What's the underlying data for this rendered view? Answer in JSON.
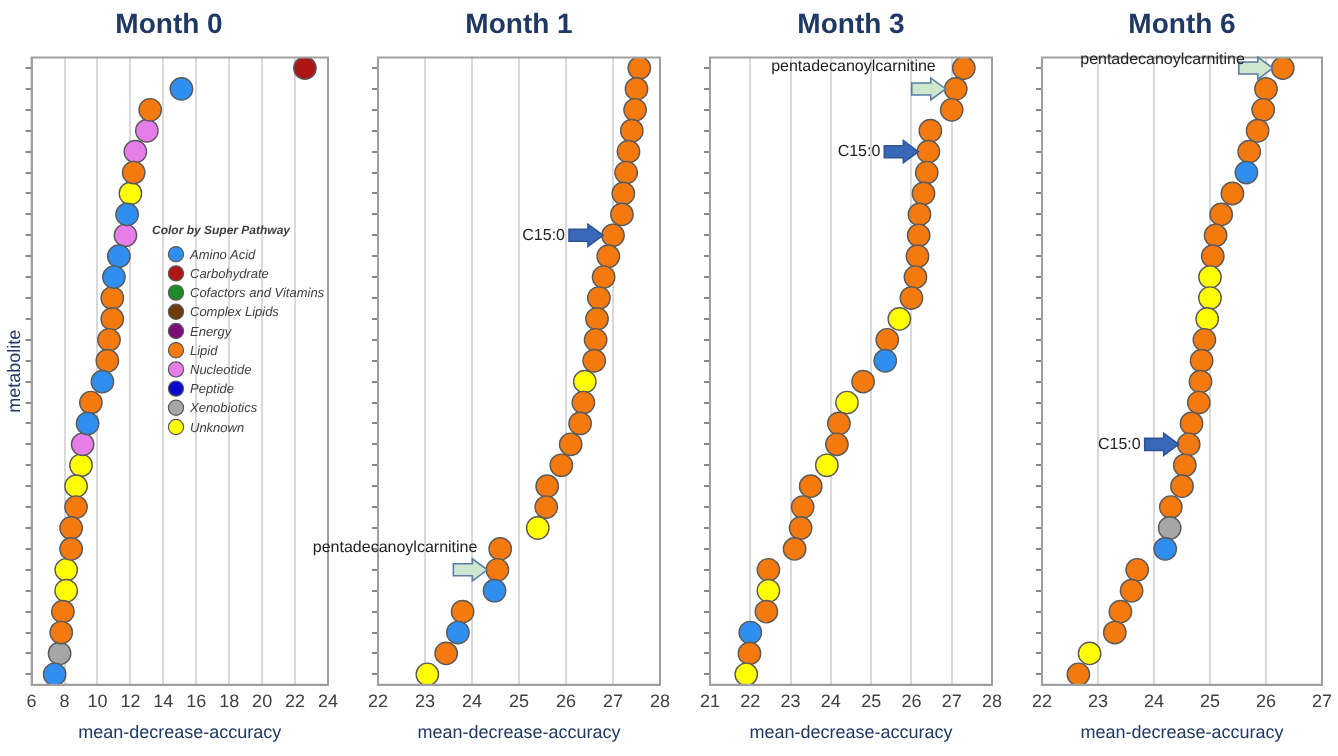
{
  "chart_data": [
    {
      "type": "scatter",
      "orientation": "horizontal",
      "title": "Month 0",
      "xlabel": "mean-decrease-accuracy",
      "ylabel": "metabolite",
      "legend_title": "Color by Super Pathway",
      "legend": "right",
      "grid": "x",
      "marker": "circle",
      "categories": [
        null,
        null,
        null,
        null,
        null,
        null,
        null,
        null,
        null,
        null,
        null,
        null,
        null,
        null,
        null,
        null,
        null,
        null,
        null,
        null,
        null,
        null,
        null,
        null,
        null,
        null,
        null,
        null,
        null,
        null
      ],
      "xlim": [
        6,
        24
      ],
      "xticks": [
        6,
        8,
        10,
        12,
        14,
        16,
        18,
        20,
        22,
        24
      ],
      "series": [
        {
          "name": "Amino Acid",
          "color": "#2e8ff0",
          "values": [
            null,
            15.1,
            null,
            null,
            null,
            null,
            null,
            11.8,
            null,
            11.3,
            11.0,
            null,
            null,
            null,
            null,
            10.3,
            null,
            9.4,
            null,
            null,
            null,
            null,
            null,
            null,
            null,
            null,
            null,
            null,
            null,
            7.4
          ]
        },
        {
          "name": "Carbohydrate",
          "color": "#b01515",
          "values": [
            22.6,
            null,
            null,
            null,
            null,
            null,
            null,
            null,
            null,
            null,
            null,
            null,
            null,
            null,
            null,
            null,
            null,
            null,
            null,
            null,
            null,
            null,
            null,
            null,
            null,
            null,
            null,
            null,
            null,
            null
          ]
        },
        {
          "name": "Cofactors and Vitamins",
          "color": "#1f8a2a",
          "values": [
            null,
            null,
            null,
            null,
            null,
            null,
            null,
            null,
            null,
            null,
            null,
            null,
            null,
            null,
            null,
            null,
            null,
            null,
            null,
            null,
            null,
            null,
            null,
            null,
            null,
            null,
            null,
            null,
            null,
            null
          ]
        },
        {
          "name": "Complex Lipids",
          "color": "#6e3a0c",
          "values": [
            null,
            null,
            null,
            null,
            null,
            null,
            null,
            null,
            null,
            null,
            null,
            null,
            null,
            null,
            null,
            null,
            null,
            null,
            null,
            null,
            null,
            null,
            null,
            null,
            null,
            null,
            null,
            null,
            null,
            null
          ]
        },
        {
          "name": "Energy",
          "color": "#7a0f7a",
          "values": [
            null,
            null,
            null,
            null,
            null,
            null,
            null,
            null,
            null,
            null,
            null,
            null,
            null,
            null,
            null,
            null,
            null,
            null,
            null,
            null,
            null,
            null,
            null,
            null,
            null,
            null,
            null,
            null,
            null,
            null
          ]
        },
        {
          "name": "Lipid",
          "color": "#f47a10",
          "values": [
            null,
            null,
            13.2,
            null,
            null,
            12.2,
            null,
            null,
            null,
            null,
            null,
            10.9,
            10.9,
            10.7,
            10.6,
            null,
            9.6,
            null,
            null,
            null,
            null,
            8.7,
            8.4,
            8.4,
            null,
            null,
            7.9,
            7.8,
            null,
            null
          ]
        },
        {
          "name": "Nucleotide",
          "color": "#e77de8",
          "values": [
            null,
            null,
            null,
            13.0,
            12.3,
            null,
            null,
            null,
            11.7,
            null,
            null,
            null,
            null,
            null,
            null,
            null,
            null,
            null,
            9.1,
            null,
            null,
            null,
            null,
            null,
            null,
            null,
            null,
            null,
            null,
            null
          ]
        },
        {
          "name": "Peptide",
          "color": "#0a0ac8",
          "values": [
            null,
            null,
            null,
            null,
            null,
            null,
            null,
            null,
            null,
            null,
            null,
            null,
            null,
            null,
            null,
            null,
            null,
            null,
            null,
            null,
            null,
            null,
            null,
            null,
            null,
            null,
            null,
            null,
            null,
            null
          ]
        },
        {
          "name": "Xenobiotics",
          "color": "#a6a6a6",
          "values": [
            null,
            null,
            null,
            null,
            null,
            null,
            null,
            null,
            null,
            null,
            null,
            null,
            null,
            null,
            null,
            null,
            null,
            null,
            null,
            null,
            null,
            null,
            null,
            null,
            null,
            null,
            null,
            null,
            7.7,
            null
          ]
        },
        {
          "name": "Unknown",
          "color": "#ffff00",
          "values": [
            null,
            null,
            null,
            null,
            null,
            null,
            12.0,
            null,
            null,
            null,
            null,
            null,
            null,
            null,
            null,
            null,
            null,
            null,
            null,
            9.0,
            8.7,
            null,
            null,
            null,
            8.1,
            8.1,
            null,
            null,
            null,
            null
          ]
        }
      ]
    },
    {
      "type": "scatter",
      "orientation": "horizontal",
      "title": "Month 1",
      "xlabel": "mean-decrease-accuracy",
      "grid": "x",
      "marker": "circle",
      "categories": [
        null,
        null,
        null,
        null,
        null,
        null,
        null,
        null,
        null,
        null,
        null,
        null,
        null,
        null,
        null,
        null,
        null,
        null,
        null,
        null,
        null,
        null,
        null,
        null,
        null,
        null,
        null,
        null,
        null,
        null
      ],
      "xlim": [
        22,
        28
      ],
      "xticks": [
        22,
        23,
        24,
        25,
        26,
        27,
        28
      ],
      "values": [
        27.56,
        27.5,
        27.47,
        27.4,
        27.33,
        27.28,
        27.22,
        27.19,
        27.0,
        26.9,
        26.8,
        26.7,
        26.66,
        26.63,
        26.6,
        26.4,
        26.37,
        26.3,
        26.1,
        25.9,
        25.6,
        25.58,
        25.4,
        24.6,
        24.54,
        24.48,
        23.8,
        23.7,
        23.45,
        23.05
      ],
      "colors": [
        "#f47a10",
        "#f47a10",
        "#f47a10",
        "#f47a10",
        "#f47a10",
        "#f47a10",
        "#f47a10",
        "#f47a10",
        "#f47a10",
        "#f47a10",
        "#f47a10",
        "#f47a10",
        "#f47a10",
        "#f47a10",
        "#f47a10",
        "#ffff00",
        "#f47a10",
        "#f47a10",
        "#f47a10",
        "#f47a10",
        "#f47a10",
        "#f47a10",
        "#ffff00",
        "#f47a10",
        "#f47a10",
        "#2e8ff0",
        "#f47a10",
        "#2e8ff0",
        "#f47a10",
        "#ffff00"
      ],
      "annotations": [
        {
          "text": "C15:0",
          "x": 27.0
        },
        {
          "text": "pentadecanoylcarnitine",
          "x": 24.54
        }
      ]
    },
    {
      "type": "scatter",
      "orientation": "horizontal",
      "title": "Month 3",
      "xlabel": "mean-decrease-accuracy",
      "grid": "x",
      "marker": "circle",
      "categories": [
        null,
        null,
        null,
        null,
        null,
        null,
        null,
        null,
        null,
        null,
        null,
        null,
        null,
        null,
        null,
        null,
        null,
        null,
        null,
        null,
        null,
        null,
        null,
        null,
        null,
        null,
        null,
        null,
        null,
        null
      ],
      "xlim": [
        21,
        28
      ],
      "xticks": [
        21,
        22,
        23,
        24,
        25,
        26,
        27,
        28
      ],
      "values": [
        27.3,
        27.1,
        27.0,
        26.47,
        26.42,
        26.38,
        26.3,
        26.2,
        26.18,
        26.15,
        26.1,
        26.0,
        25.7,
        25.4,
        25.35,
        24.8,
        24.4,
        24.2,
        24.15,
        23.9,
        23.5,
        23.3,
        23.25,
        23.1,
        22.45,
        22.45,
        22.4,
        22.0,
        21.98,
        21.9
      ],
      "colors": [
        "#f47a10",
        "#f47a10",
        "#f47a10",
        "#f47a10",
        "#f47a10",
        "#f47a10",
        "#f47a10",
        "#f47a10",
        "#f47a10",
        "#f47a10",
        "#f47a10",
        "#f47a10",
        "#ffff00",
        "#f47a10",
        "#2e8ff0",
        "#f47a10",
        "#ffff00",
        "#f47a10",
        "#f47a10",
        "#ffff00",
        "#f47a10",
        "#f47a10",
        "#f47a10",
        "#f47a10",
        "#f47a10",
        "#ffff00",
        "#f47a10",
        "#2e8ff0",
        "#f47a10",
        "#ffff00"
      ],
      "annotations": [
        {
          "text": "C15:0",
          "x": 26.42
        },
        {
          "text": "pentadecanoylcarnitine",
          "x": 27.1
        }
      ]
    },
    {
      "type": "scatter",
      "orientation": "horizontal",
      "title": "Month 6",
      "xlabel": "mean-decrease-accuracy",
      "grid": "x",
      "marker": "circle",
      "categories": [
        null,
        null,
        null,
        null,
        null,
        null,
        null,
        null,
        null,
        null,
        null,
        null,
        null,
        null,
        null,
        null,
        null,
        null,
        null,
        null,
        null,
        null,
        null,
        null,
        null,
        null,
        null,
        null,
        null,
        null
      ],
      "xlim": [
        22,
        27
      ],
      "xticks": [
        22,
        23,
        24,
        25,
        26,
        27
      ],
      "values": [
        26.3,
        26.0,
        25.95,
        25.85,
        25.7,
        25.65,
        25.4,
        25.2,
        25.1,
        25.05,
        25.0,
        25.0,
        24.95,
        24.9,
        24.85,
        24.83,
        24.8,
        24.67,
        24.62,
        24.55,
        24.5,
        24.3,
        24.28,
        24.2,
        23.7,
        23.6,
        23.4,
        23.3,
        22.85,
        22.65
      ],
      "colors": [
        "#f47a10",
        "#f47a10",
        "#f47a10",
        "#f47a10",
        "#f47a10",
        "#2e8ff0",
        "#f47a10",
        "#f47a10",
        "#f47a10",
        "#f47a10",
        "#ffff00",
        "#ffff00",
        "#ffff00",
        "#f47a10",
        "#f47a10",
        "#f47a10",
        "#f47a10",
        "#f47a10",
        "#f47a10",
        "#f47a10",
        "#f47a10",
        "#f47a10",
        "#a6a6a6",
        "#2e8ff0",
        "#f47a10",
        "#f47a10",
        "#f47a10",
        "#f47a10",
        "#ffff00",
        "#f47a10"
      ],
      "annotations": [
        {
          "text": "C15:0",
          "x": 24.62
        },
        {
          "text": "pentadecanoylcarnitine",
          "x": 26.3
        }
      ]
    }
  ]
}
